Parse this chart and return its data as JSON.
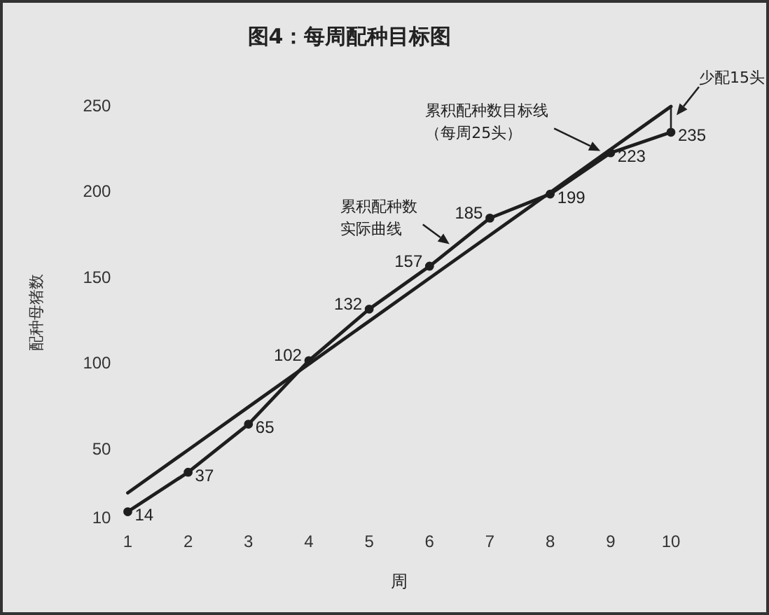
{
  "chart_data": {
    "type": "line",
    "title": "图4：每周配种目标图",
    "xlabel": "周",
    "ylabel": "配种母猪数",
    "categories": [
      "1",
      "2",
      "3",
      "4",
      "5",
      "6",
      "7",
      "8",
      "9",
      "10"
    ],
    "series": [
      {
        "name": "累积配种数目标线（每周25头）",
        "color": "#1e1e1e",
        "marker": "none",
        "values": [
          25,
          50,
          75,
          100,
          125,
          150,
          175,
          200,
          225,
          250
        ]
      },
      {
        "name": "累积配种数实际曲线",
        "color": "#1e1e1e",
        "marker": "circle",
        "values": [
          14,
          37,
          65,
          102,
          132,
          157,
          185,
          199,
          223,
          235
        ],
        "value_labels": [
          "14",
          "37",
          "65",
          "102",
          "132",
          "157",
          "185",
          "199",
          "223",
          "235"
        ]
      }
    ],
    "ylim": [
      10,
      250
    ],
    "yticks": [
      10,
      50,
      100,
      150,
      200,
      250
    ],
    "grid": false,
    "annotations": [
      {
        "text": "少配15头",
        "x": "10",
        "y": 250
      }
    ]
  }
}
